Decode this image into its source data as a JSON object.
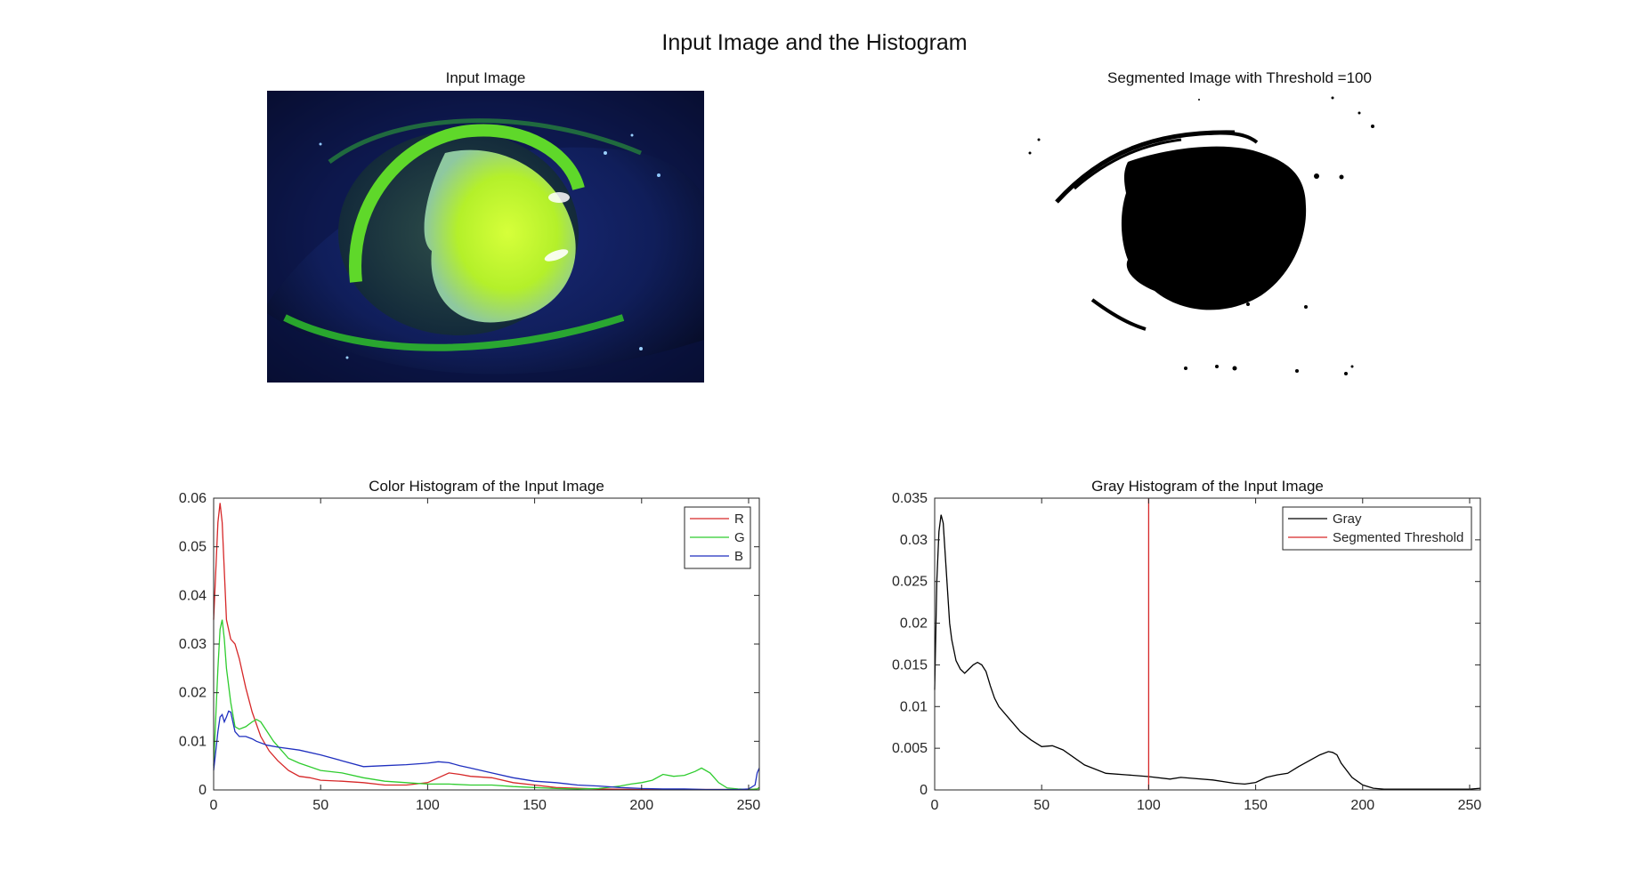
{
  "figure": {
    "title": "Input Image and the Histogram",
    "input_image_title": "Input Image",
    "segmented_image_title": "Segmented Image with Threshold =100"
  },
  "chart_data": [
    {
      "type": "line",
      "title": "Color Histogram of the Input Image",
      "xlim": [
        0,
        255
      ],
      "ylim": [
        0,
        0.06
      ],
      "xticks": [
        0,
        50,
        100,
        150,
        200,
        250
      ],
      "yticks": [
        0,
        0.01,
        0.02,
        0.03,
        0.04,
        0.05,
        0.06
      ],
      "xtick_labels": [
        "0",
        "50",
        "100",
        "150",
        "200",
        "250"
      ],
      "ytick_labels": [
        "0",
        "0.01",
        "0.02",
        "0.03",
        "0.04",
        "0.05",
        "0.06"
      ],
      "legend_position": "top-right",
      "series": [
        {
          "name": "R",
          "color": "#d62728",
          "x": [
            0,
            1,
            2,
            3,
            4,
            5,
            6,
            8,
            10,
            12,
            15,
            18,
            22,
            26,
            30,
            35,
            40,
            45,
            50,
            60,
            70,
            80,
            90,
            100,
            105,
            110,
            115,
            120,
            130,
            140,
            150,
            160,
            180,
            200,
            220,
            240,
            250,
            254,
            255
          ],
          "y": [
            0.035,
            0.045,
            0.055,
            0.059,
            0.055,
            0.045,
            0.035,
            0.031,
            0.03,
            0.027,
            0.021,
            0.016,
            0.011,
            0.008,
            0.006,
            0.004,
            0.0028,
            0.0025,
            0.002,
            0.0018,
            0.0015,
            0.001,
            0.001,
            0.0015,
            0.0025,
            0.0035,
            0.0032,
            0.0028,
            0.0025,
            0.0015,
            0.001,
            0.0005,
            0.0002,
            0.0001,
            0.0001,
            0.0001,
            0.0001,
            0.0002,
            0.0005
          ]
        },
        {
          "name": "G",
          "color": "#2ecc2e",
          "x": [
            0,
            1,
            2,
            3,
            4,
            5,
            6,
            8,
            10,
            12,
            15,
            18,
            20,
            22,
            25,
            28,
            30,
            35,
            40,
            50,
            60,
            70,
            80,
            90,
            100,
            110,
            120,
            130,
            140,
            150,
            160,
            170,
            180,
            190,
            195,
            200,
            205,
            210,
            215,
            220,
            225,
            228,
            232,
            236,
            240,
            245,
            250,
            254,
            255
          ],
          "y": [
            0.005,
            0.015,
            0.025,
            0.033,
            0.035,
            0.031,
            0.025,
            0.018,
            0.013,
            0.0125,
            0.013,
            0.014,
            0.0145,
            0.014,
            0.012,
            0.01,
            0.009,
            0.0065,
            0.0055,
            0.004,
            0.0035,
            0.0025,
            0.0018,
            0.0015,
            0.0012,
            0.0012,
            0.001,
            0.001,
            0.0007,
            0.0005,
            0.0003,
            0.0002,
            0.0003,
            0.0008,
            0.0012,
            0.0015,
            0.002,
            0.0032,
            0.0028,
            0.003,
            0.0038,
            0.0045,
            0.0035,
            0.0015,
            0.0004,
            0.0002,
            0.0001,
            0.0002,
            0.0005
          ]
        },
        {
          "name": "B",
          "color": "#1f2fbf",
          "x": [
            0,
            1,
            2,
            3,
            4,
            5,
            6,
            7,
            8,
            9,
            10,
            12,
            15,
            18,
            20,
            25,
            30,
            40,
            50,
            60,
            70,
            80,
            90,
            100,
            105,
            110,
            115,
            120,
            130,
            140,
            150,
            160,
            170,
            180,
            190,
            200,
            210,
            220,
            230,
            240,
            245,
            250,
            253,
            254,
            255
          ],
          "y": [
            0.004,
            0.008,
            0.012,
            0.015,
            0.0155,
            0.014,
            0.015,
            0.0162,
            0.016,
            0.014,
            0.012,
            0.011,
            0.011,
            0.0105,
            0.01,
            0.0092,
            0.0088,
            0.0082,
            0.0072,
            0.006,
            0.0048,
            0.005,
            0.0052,
            0.0055,
            0.0058,
            0.0056,
            0.005,
            0.0045,
            0.0035,
            0.0025,
            0.0018,
            0.0015,
            0.001,
            0.0008,
            0.0005,
            0.0003,
            0.0002,
            0.0002,
            0.0001,
            0.0001,
            0.0001,
            0.0002,
            0.001,
            0.0035,
            0.0045
          ]
        }
      ]
    },
    {
      "type": "line",
      "title": "Gray Histogram of the Input Image",
      "xlim": [
        0,
        255
      ],
      "ylim": [
        0,
        0.035
      ],
      "xticks": [
        0,
        50,
        100,
        150,
        200,
        250
      ],
      "yticks": [
        0,
        0.005,
        0.01,
        0.015,
        0.02,
        0.025,
        0.03,
        0.035
      ],
      "xtick_labels": [
        "0",
        "50",
        "100",
        "150",
        "200",
        "250"
      ],
      "ytick_labels": [
        "0",
        "0.005",
        "0.01",
        "0.015",
        "0.02",
        "0.025",
        "0.03",
        "0.035"
      ],
      "legend_position": "top-right",
      "series": [
        {
          "name": "Gray",
          "color": "#000000",
          "x": [
            0,
            1,
            2,
            3,
            4,
            5,
            6,
            7,
            8,
            10,
            12,
            14,
            16,
            18,
            20,
            22,
            24,
            26,
            28,
            30,
            35,
            40,
            45,
            50,
            55,
            60,
            70,
            80,
            90,
            100,
            110,
            115,
            120,
            130,
            140,
            145,
            150,
            155,
            160,
            165,
            170,
            175,
            180,
            184,
            186,
            188,
            190,
            195,
            200,
            205,
            210,
            220,
            230,
            240,
            250,
            255
          ],
          "y": [
            0.012,
            0.025,
            0.031,
            0.033,
            0.032,
            0.028,
            0.024,
            0.02,
            0.018,
            0.0155,
            0.0145,
            0.014,
            0.0145,
            0.015,
            0.0153,
            0.015,
            0.0142,
            0.0125,
            0.011,
            0.01,
            0.0085,
            0.007,
            0.006,
            0.0052,
            0.0053,
            0.0048,
            0.003,
            0.002,
            0.0018,
            0.0016,
            0.0013,
            0.0015,
            0.0014,
            0.0012,
            0.0008,
            0.0007,
            0.0009,
            0.0015,
            0.0018,
            0.002,
            0.0028,
            0.0035,
            0.0042,
            0.0046,
            0.0045,
            0.0042,
            0.0032,
            0.0015,
            0.0006,
            0.0002,
            0.0001,
            0.0001,
            0.0001,
            0.0001,
            0.0001,
            0.0002
          ]
        },
        {
          "name": "Segmented Threshold",
          "color": "#d62728",
          "x": [
            100,
            100
          ],
          "y": [
            0,
            0.035
          ]
        }
      ]
    }
  ]
}
